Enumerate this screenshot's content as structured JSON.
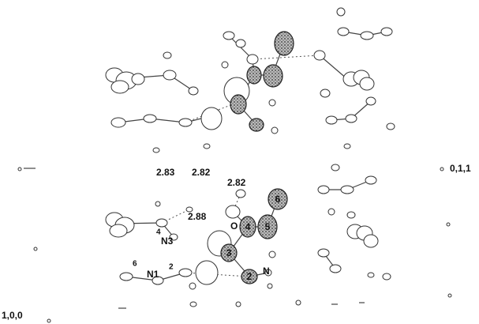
{
  "axis_labels": {
    "right": "0,1,1",
    "bottom_left": "1,0,0"
  },
  "distances": [
    "2.83",
    "2.82",
    "2.82",
    "2.88"
  ],
  "atom_labels": {
    "oxygen": "O",
    "n3": "N3",
    "n3_number": "4",
    "n1": "N1",
    "n1_number": "6",
    "n1_right_number": "2",
    "nitrogen": "N"
  },
  "ring_numbers": [
    "6",
    "5",
    "4",
    "3",
    "2"
  ]
}
